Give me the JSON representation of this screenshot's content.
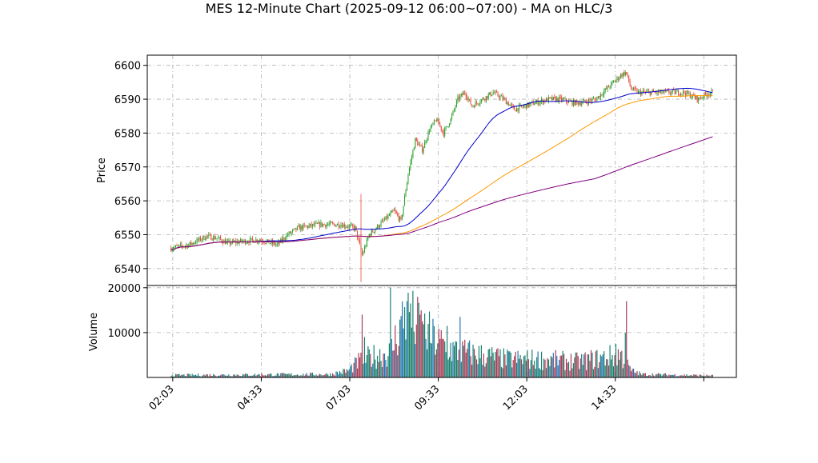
{
  "chart_data": {
    "type": "candlestick",
    "title": "MES 12-Minute Chart (2025-09-12 06:00~07:00) - MA on HLC/3",
    "price_panel": {
      "ylabel": "Price",
      "ylim": [
        6535,
        6603
      ],
      "yticks": [
        6540,
        6550,
        6560,
        6570,
        6580,
        6590,
        6600
      ],
      "grid": true
    },
    "volume_panel": {
      "ylabel": "Volume",
      "ylim": [
        0,
        20500
      ],
      "yticks": [
        10000,
        20000
      ],
      "grid": true
    },
    "x_axis": {
      "range_hours": [
        1.33,
        17.97
      ],
      "ticks": [
        {
          "label": "02:03",
          "hour": 2.05
        },
        {
          "label": "04:33",
          "hour": 4.55
        },
        {
          "label": "07:03",
          "hour": 7.05
        },
        {
          "label": "09:33",
          "hour": 9.55
        },
        {
          "label": "12:03",
          "hour": 12.05
        },
        {
          "label": "14:33",
          "hour": 14.55
        },
        {
          "label": "",
          "hour": 17.05
        }
      ],
      "tick_label_rotation": 45
    },
    "price_anchors": [
      [
        2.0,
        6546
      ],
      [
        2.5,
        6547
      ],
      [
        3.0,
        6549.5
      ],
      [
        3.3,
        6549
      ],
      [
        3.6,
        6547.5
      ],
      [
        4.0,
        6548
      ],
      [
        4.5,
        6548.5
      ],
      [
        5.0,
        6547
      ],
      [
        5.3,
        6550
      ],
      [
        5.6,
        6552
      ],
      [
        6.2,
        6553
      ],
      [
        6.8,
        6553
      ],
      [
        7.2,
        6552
      ],
      [
        7.4,
        6544
      ],
      [
        7.6,
        6550
      ],
      [
        8.0,
        6554
      ],
      [
        8.3,
        6557
      ],
      [
        8.5,
        6554
      ],
      [
        8.7,
        6568
      ],
      [
        8.9,
        6578
      ],
      [
        9.1,
        6575
      ],
      [
        9.3,
        6581
      ],
      [
        9.5,
        6584
      ],
      [
        9.7,
        6580
      ],
      [
        9.9,
        6584
      ],
      [
        10.1,
        6590
      ],
      [
        10.3,
        6592
      ],
      [
        10.5,
        6588
      ],
      [
        10.8,
        6590
      ],
      [
        11.1,
        6592
      ],
      [
        11.4,
        6590
      ],
      [
        11.7,
        6587
      ],
      [
        12.0,
        6588
      ],
      [
        12.3,
        6589
      ],
      [
        12.7,
        6590
      ],
      [
        13.0,
        6590
      ],
      [
        13.3,
        6589
      ],
      [
        13.6,
        6589
      ],
      [
        14.0,
        6590
      ],
      [
        14.2,
        6592
      ],
      [
        14.5,
        6595
      ],
      [
        14.7,
        6597
      ],
      [
        14.85,
        6598
      ],
      [
        15.0,
        6593
      ],
      [
        15.2,
        6592
      ],
      [
        15.6,
        6592
      ],
      [
        16.0,
        6592
      ],
      [
        16.5,
        6592
      ],
      [
        16.9,
        6590
      ],
      [
        17.1,
        6591.5
      ],
      [
        17.3,
        6592
      ]
    ],
    "price_spikes": [
      {
        "hour": 7.35,
        "high": 6562,
        "low": 6536
      }
    ],
    "volume_profile": [
      [
        2.0,
        500
      ],
      [
        6.5,
        700
      ],
      [
        7.0,
        1500
      ],
      [
        7.3,
        3500
      ],
      [
        7.6,
        4500
      ],
      [
        8.2,
        5500
      ],
      [
        8.6,
        14000
      ],
      [
        9.5,
        8000
      ],
      [
        10.0,
        6000
      ],
      [
        11.5,
        4000
      ],
      [
        12.5,
        4000
      ],
      [
        13.5,
        3500
      ],
      [
        14.3,
        4500
      ],
      [
        14.7,
        5000
      ],
      [
        15.0,
        1500
      ],
      [
        15.3,
        700
      ],
      [
        17.3,
        400
      ]
    ],
    "volume_spikes": [
      {
        "hour": 7.4,
        "value": 14000
      },
      {
        "hour": 7.45,
        "value": 9000
      },
      {
        "hour": 8.2,
        "value": 20000
      },
      {
        "hour": 8.65,
        "value": 17000
      },
      {
        "hour": 8.75,
        "value": 16500
      },
      {
        "hour": 9.05,
        "value": 14000
      },
      {
        "hour": 9.05,
        "value": 12500
      },
      {
        "hour": 9.8,
        "value": 11500
      },
      {
        "hour": 10.18,
        "value": 13500
      },
      {
        "hour": 14.88,
        "value": 17000
      },
      {
        "hour": 14.82,
        "value": 10000
      },
      {
        "hour": 14.55,
        "value": 7500
      }
    ],
    "moving_averages": [
      {
        "color": "#0000cc",
        "period": 12
      },
      {
        "color": "#ff9900",
        "period": 30
      },
      {
        "color": "#800080",
        "period": 60
      }
    ],
    "colors": {
      "up": "#2ca02c",
      "down": "#e74c3c",
      "vol_up": "#1a7f6e",
      "vol_down": "#a83a55",
      "vol_other": "#1f77b4"
    }
  }
}
